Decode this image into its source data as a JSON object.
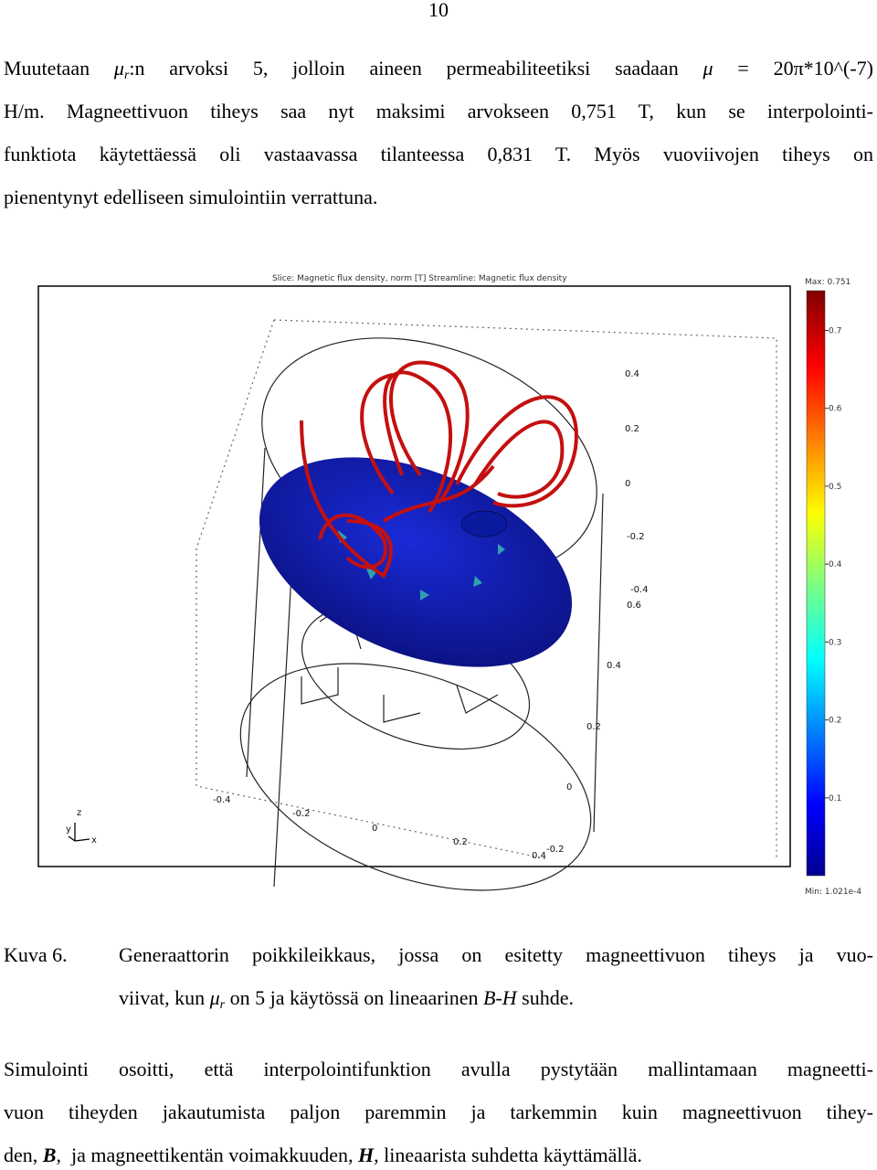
{
  "page_number": "10",
  "paragraphs": [
    {
      "lines": [
        [
          {
            "text": "Muutetaan "
          },
          {
            "italic": "μ"
          },
          {
            "sub": "r"
          },
          {
            "text": ":n arvoksi 5, jolloin aineen permeabiliteetiksi saadaan "
          },
          {
            "italic": "μ"
          },
          {
            "text": " = 20π*10^(-7)"
          }
        ],
        [
          {
            "text": "H/m. Magneettivuon tiheys saa nyt maksimi arvokseen 0,751 T, kun se interpolointi-"
          }
        ],
        [
          {
            "text": "funktiota käytettäessä oli vastaavassa tilanteessa 0,831 T. Myös vuoviivojen tiheys on"
          }
        ],
        [
          {
            "text": "pienentynyt edelliseen simulointiin verrattuna."
          }
        ]
      ]
    },
    {
      "lines": [
        [
          {
            "text": "Simulointi osoitti, että interpolointifunktion avulla pystytään mallintamaan magneetti-"
          }
        ],
        [
          {
            "text": "vuon tiheyden jakautumista paljon paremmin ja tarkemmin kuin magneettivuon tihey-"
          }
        ],
        [
          {
            "text": "den, "
          },
          {
            "bold_italic": "B"
          },
          {
            "text": ",  ja magneettikentän voimakkuuden, "
          },
          {
            "bold_italic": "H"
          },
          {
            "text": ", lineaarista suhdetta käyttämällä."
          }
        ]
      ]
    }
  ],
  "figure": {
    "title": "Slice: Magnetic flux density, norm [T]  Streamline: Magnetic flux density",
    "colorbar": {
      "max_label": "Max: 0.751",
      "min_label": "Min: 1.021e-4",
      "lim": [
        0.0001021,
        0.751
      ],
      "ticks": [
        0.7,
        0.6,
        0.5,
        0.4,
        0.3,
        0.2,
        0.1
      ]
    },
    "axis_labels": [
      "0.4",
      "0.2",
      "0",
      "-0.2",
      "-0.4",
      "0.6",
      "0.4",
      "0.2",
      "0",
      "-0.4",
      "-0.2",
      "0",
      "0.2",
      "0.4",
      "-0.2"
    ],
    "axis_names": [
      "y",
      "z",
      "x"
    ]
  },
  "caption": {
    "label": "Kuva 6.",
    "lines": [
      [
        {
          "text": "Generaattorin poikkileikkaus, jossa on esitetty magneettivuon tiheys ja vuo-"
        }
      ],
      [
        {
          "text": "viivat, kun "
        },
        {
          "italic": "μ"
        },
        {
          "sub": "r"
        },
        {
          "text": " on 5 ja käytössä on lineaarinen "
        },
        {
          "italic": "B-H"
        },
        {
          "text": " suhde."
        }
      ]
    ]
  }
}
